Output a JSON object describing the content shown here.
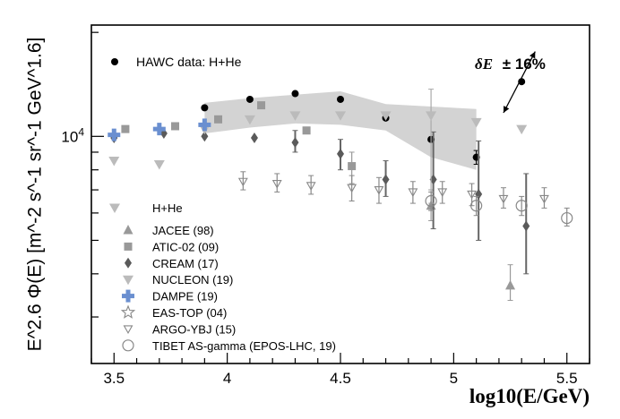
{
  "chart_data": {
    "type": "scatter",
    "title": "",
    "xlabel": "log10(E/GeV)",
    "ylabel": "E^2.6 Φ(E) [m^-2 s^-1 sr^-1 GeV^1.6]",
    "xlim": [
      3.4,
      5.6
    ],
    "ylim": [
      2200,
      21000
    ],
    "yscale": "log",
    "x_ticks": [
      3.5,
      4,
      4.5,
      5,
      5.5
    ],
    "x_tick_labels": [
      "3.5",
      "4",
      "4.5",
      "5",
      "5.5"
    ],
    "y_ticks": [
      10000
    ],
    "y_tick_labels": [
      "10^4"
    ],
    "annotation": {
      "text": "δE = ± 16%",
      "symbol": "δE",
      "value": "± 16%",
      "x": 5.3,
      "y": 14400,
      "x_low": 5.22,
      "y_low": 11700,
      "x_high": 5.36,
      "y_high": 17600
    },
    "band": {
      "name": "HAWC systematic band",
      "x": [
        3.9,
        4.1,
        4.3,
        4.5,
        4.7,
        4.9,
        5.1
      ],
      "y_low": [
        10200,
        10600,
        10900,
        10800,
        10400,
        8700,
        8000
      ],
      "y_high": [
        12500,
        12900,
        13200,
        13500,
        12400,
        12200,
        12000
      ]
    },
    "legend_title": "H+He",
    "series": [
      {
        "name": "HAWC data: H+He",
        "marker": "circle-filled",
        "color": "#000000",
        "x": [
          3.9,
          4.1,
          4.3,
          4.5,
          4.7,
          4.9,
          5.1
        ],
        "y": [
          12100,
          12800,
          13300,
          12800,
          11300,
          9800,
          8700
        ],
        "y_low": [
          null,
          null,
          null,
          null,
          null,
          null,
          8300
        ],
        "y_high": [
          null,
          null,
          null,
          null,
          null,
          null,
          9100
        ]
      },
      {
        "name": "JACEE (98)",
        "marker": "triangle-up-filled",
        "color": "#999999",
        "x": [
          4.9,
          5.25
        ],
        "y": [
          6300,
          3700
        ],
        "y_low": [
          5700,
          3350
        ],
        "y_high": [
          7000,
          4250
        ]
      },
      {
        "name": "ATIC-02 (09)",
        "marker": "square-filled",
        "color": "#999999",
        "x": [
          3.55,
          3.77,
          3.96,
          4.15,
          4.35,
          4.55
        ],
        "y": [
          10500,
          10700,
          11200,
          12300,
          10400,
          8200
        ],
        "y_low": [
          null,
          null,
          null,
          null,
          null,
          7300
        ],
        "y_high": [
          null,
          null,
          null,
          null,
          null,
          9000
        ]
      },
      {
        "name": "CREAM (17)",
        "marker": "diamond-filled",
        "color": "#5a5a5a",
        "x": [
          3.5,
          3.72,
          3.9,
          4.12,
          4.3,
          4.5,
          4.7,
          4.91,
          5.11,
          5.32
        ],
        "y": [
          9900,
          10200,
          10000,
          9900,
          9600,
          8900,
          7500,
          7500,
          6800,
          5500
        ],
        "y_low": [
          null,
          null,
          null,
          null,
          9000,
          8000,
          6700,
          5400,
          5000,
          4000
        ],
        "y_high": [
          null,
          null,
          null,
          null,
          10400,
          9800,
          8500,
          10300,
          9700,
          7800
        ]
      },
      {
        "name": "NUCLEON (19)",
        "marker": "triangle-down-filled",
        "color": "#bbbbbb",
        "x": [
          3.5,
          3.7,
          3.9,
          4.1,
          4.3,
          4.5,
          4.7,
          4.9,
          5.1,
          5.3
        ],
        "y": [
          8500,
          8300,
          10500,
          11200,
          11500,
          11500,
          11500,
          11500,
          11000,
          10500
        ],
        "y_low": [
          null,
          null,
          null,
          null,
          null,
          null,
          null,
          6400,
          null,
          null
        ],
        "y_high": [
          null,
          null,
          null,
          null,
          null,
          null,
          null,
          13700,
          null,
          null
        ]
      },
      {
        "name": "DAMPE (19)",
        "marker": "cross-filled",
        "color": "#6a8fd0",
        "x": [
          3.5,
          3.7,
          3.9
        ],
        "y": [
          10100,
          10500,
          10800
        ]
      },
      {
        "name": "EAS-TOP (04)",
        "marker": "star-open",
        "color": "#888888",
        "x": [],
        "y": []
      },
      {
        "name": "ARGO-YBJ (15)",
        "marker": "triangle-down-open",
        "color": "#888888",
        "x": [
          4.07,
          4.22,
          4.37,
          4.55,
          4.67,
          4.82,
          4.95,
          5.08,
          5.22,
          5.4
        ],
        "y": [
          7400,
          7300,
          7200,
          7100,
          7000,
          6900,
          6900,
          6800,
          6600,
          6600
        ],
        "y_low": [
          7000,
          6900,
          6800,
          6500,
          6400,
          6400,
          6400,
          6300,
          6200,
          6200
        ],
        "y_high": [
          7900,
          7800,
          7700,
          7700,
          7600,
          7400,
          7400,
          7300,
          7100,
          7100
        ]
      },
      {
        "name": "TIBET AS-gamma (EPOS-LHC, 19)",
        "marker": "circle-open",
        "color": "#888888",
        "x": [
          4.9,
          5.1,
          5.3,
          5.5
        ],
        "y": [
          6500,
          6300,
          6300,
          5800
        ],
        "y_low": [
          6100,
          5900,
          5900,
          5500
        ],
        "y_high": [
          6900,
          6700,
          6700,
          6200
        ]
      }
    ]
  }
}
